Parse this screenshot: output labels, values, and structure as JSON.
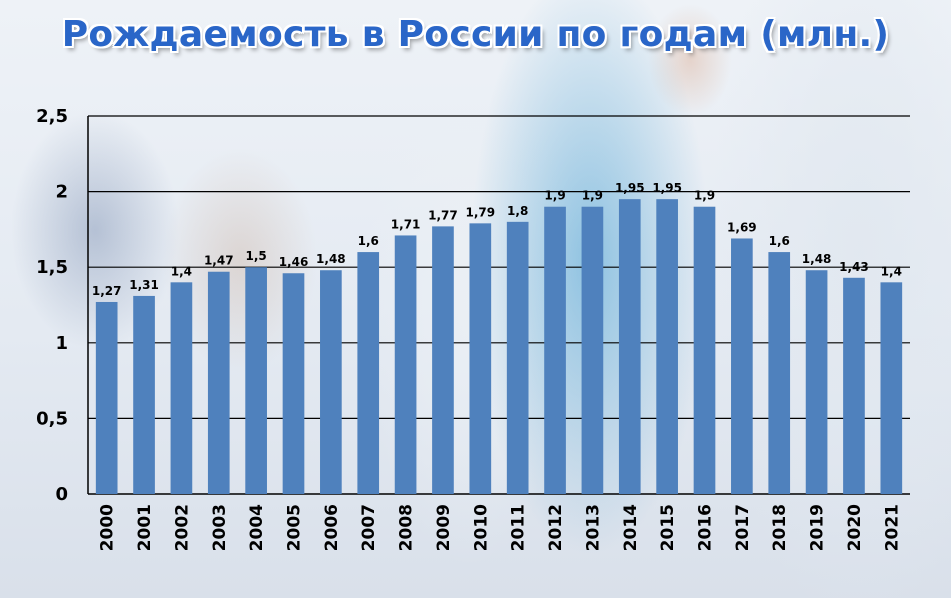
{
  "chart_data": {
    "type": "bar",
    "title": "Рождаемость в России по годам (млн.)",
    "categories": [
      "2000",
      "2001",
      "2002",
      "2003",
      "2004",
      "2005",
      "2006",
      "2007",
      "2008",
      "2009",
      "2010",
      "2011",
      "2012",
      "2013",
      "2014",
      "2015",
      "2016",
      "2017",
      "2018",
      "2019",
      "2020",
      "2021"
    ],
    "values": [
      1.27,
      1.31,
      1.4,
      1.47,
      1.5,
      1.46,
      1.48,
      1.6,
      1.71,
      1.77,
      1.79,
      1.8,
      1.9,
      1.9,
      1.95,
      1.95,
      1.9,
      1.69,
      1.6,
      1.48,
      1.43,
      1.4
    ],
    "value_labels": [
      "1,27",
      "1,31",
      "1,4",
      "1,47",
      "1,5",
      "1,46",
      "1,48",
      "1,6",
      "1,71",
      "1,77",
      "1,79",
      "1,8",
      "1,9",
      "1,9",
      "1,95",
      "1,95",
      "1,9",
      "1,69",
      "1,6",
      "1,48",
      "1,43",
      "1,4"
    ],
    "ylim": [
      0,
      2.5
    ],
    "yticks": [
      0,
      0.5,
      1,
      1.5,
      2,
      2.5
    ],
    "ytick_labels": [
      "0",
      "0,5",
      "1",
      "1,5",
      "2",
      "2,5"
    ],
    "xlabel": "",
    "ylabel": "",
    "grid": true,
    "bar_color": "#4f81bd",
    "title_color": "#2a66c8"
  }
}
